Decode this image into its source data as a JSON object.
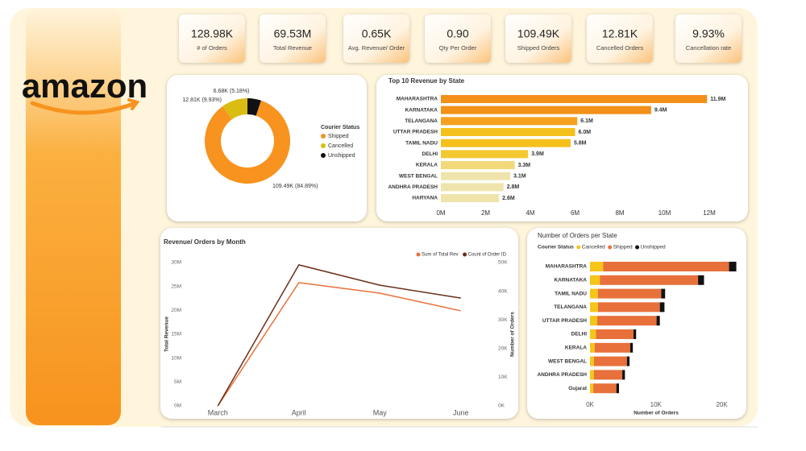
{
  "brand": "amazon",
  "kpis": [
    {
      "value": "128.98K",
      "label": "# of Orders"
    },
    {
      "value": "69.53M",
      "label": "Total Revenue"
    },
    {
      "value": "0.65K",
      "label": "Avg. Revenue/ Order"
    },
    {
      "value": "0.90",
      "label": "Qty Per Order"
    },
    {
      "value": "109.49K",
      "label": "Shipped Orders"
    },
    {
      "value": "12.81K",
      "label": "Cancelled Orders"
    },
    {
      "value": "9.93%",
      "label": "Cancellation rate"
    }
  ],
  "chart_data": [
    {
      "type": "donut",
      "legend_title": "Courier Status",
      "categories": [
        "Shipped",
        "Cancelled",
        "Unshipped"
      ],
      "values": [
        109490,
        12810,
        6680
      ],
      "value_labels": [
        "109.49K (84.89%)",
        "12.81K (9.93%)",
        "6.68K (5.18%)"
      ],
      "colors": [
        "#f7931e",
        "#d9bd12",
        "#111111"
      ]
    },
    {
      "type": "bar",
      "orientation": "horizontal",
      "title": "Top 10 Revenue by State",
      "categories": [
        "MAHARASHTRA",
        "KARNATAKA",
        "TELANGANA",
        "UTTAR PRADESH",
        "TAMIL NADU",
        "DELHI",
        "KERALA",
        "WEST BENGAL",
        "ANDHRA PRADESH",
        "HARYANA"
      ],
      "values": [
        11900000,
        9400000,
        6100000,
        6000000,
        5800000,
        3900000,
        3300000,
        3100000,
        2800000,
        2600000
      ],
      "value_labels": [
        "11.9M",
        "9.4M",
        "6.1M",
        "6.0M",
        "5.8M",
        "3.9M",
        "3.3M",
        "3.1M",
        "2.8M",
        "2.6M"
      ],
      "colors": [
        "#f39019",
        "#f39019",
        "#f4a020",
        "#f5c01c",
        "#f5c01c",
        "#f4c830",
        "#f2d878",
        "#eee4ac",
        "#eee4ac",
        "#eee4ac"
      ],
      "xlim": [
        0,
        12000000
      ],
      "xticks": [
        {
          "value": 0,
          "label": "0M"
        },
        {
          "value": 2000000,
          "label": "2M"
        },
        {
          "value": 4000000,
          "label": "4M"
        },
        {
          "value": 6000000,
          "label": "6M"
        },
        {
          "value": 8000000,
          "label": "8M"
        },
        {
          "value": 10000000,
          "label": "10M"
        },
        {
          "value": 12000000,
          "label": "12M"
        }
      ]
    },
    {
      "type": "line",
      "title": "Revenue/ Orders by Month",
      "categories": [
        "March",
        "April",
        "May",
        "June"
      ],
      "series": [
        {
          "name": "Sum of Total Rev",
          "color": "#e8703a",
          "values": [
            0,
            25800000,
            23600000,
            19900000
          ]
        },
        {
          "name": "Count of Order ID",
          "color": "#6b2f1a",
          "axis": "y2",
          "values": [
            0,
            49200,
            42100,
            37600
          ]
        }
      ],
      "ylabel": "Total Revenue",
      "y2label": "Number of Orders",
      "ylim": [
        0,
        30000000
      ],
      "yticks": [
        {
          "value": 0,
          "label": "0M"
        },
        {
          "value": 5000000,
          "label": "5M"
        },
        {
          "value": 10000000,
          "label": "10M"
        },
        {
          "value": 15000000,
          "label": "15M"
        },
        {
          "value": 20000000,
          "label": "20M"
        },
        {
          "value": 25000000,
          "label": "25M"
        },
        {
          "value": 30000000,
          "label": "30M"
        }
      ],
      "y2lim": [
        0,
        50000
      ],
      "y2ticks": [
        {
          "value": 0,
          "label": "0K"
        },
        {
          "value": 10000,
          "label": "10K"
        },
        {
          "value": 20000,
          "label": "20K"
        },
        {
          "value": 30000,
          "label": "30K"
        },
        {
          "value": 40000,
          "label": "40K"
        },
        {
          "value": 50000,
          "label": "50K"
        }
      ]
    },
    {
      "type": "bar",
      "orientation": "horizontal",
      "stacked": true,
      "title": "Number of Orders per State",
      "legend_title": "Courier Status",
      "categories": [
        "MAHARASHTRA",
        "KARNATAKA",
        "TAMIL NADU",
        "TELANGANA",
        "UTTAR PRADESH",
        "DELHI",
        "KERALA",
        "WEST BENGAL",
        "ANDHRA PRADESH",
        "Gujarat"
      ],
      "series": [
        {
          "name": "Cancelled",
          "color": "#f5c518",
          "values": [
            2000,
            1500,
            1200,
            1200,
            1100,
            900,
            700,
            600,
            600,
            500
          ]
        },
        {
          "name": "Shipped",
          "color": "#e8703a",
          "values": [
            19100,
            14900,
            9600,
            9400,
            9000,
            5700,
            5400,
            5000,
            4300,
            3500
          ]
        },
        {
          "name": "Unshipped",
          "color": "#111111",
          "values": [
            1100,
            900,
            600,
            700,
            500,
            400,
            400,
            400,
            400,
            400
          ]
        }
      ],
      "xlabel": "Number of Orders",
      "xlim": [
        0,
        22500
      ],
      "xticks": [
        {
          "value": 0,
          "label": "0K"
        },
        {
          "value": 10000,
          "label": "10K"
        },
        {
          "value": 20000,
          "label": "20K"
        }
      ]
    }
  ]
}
